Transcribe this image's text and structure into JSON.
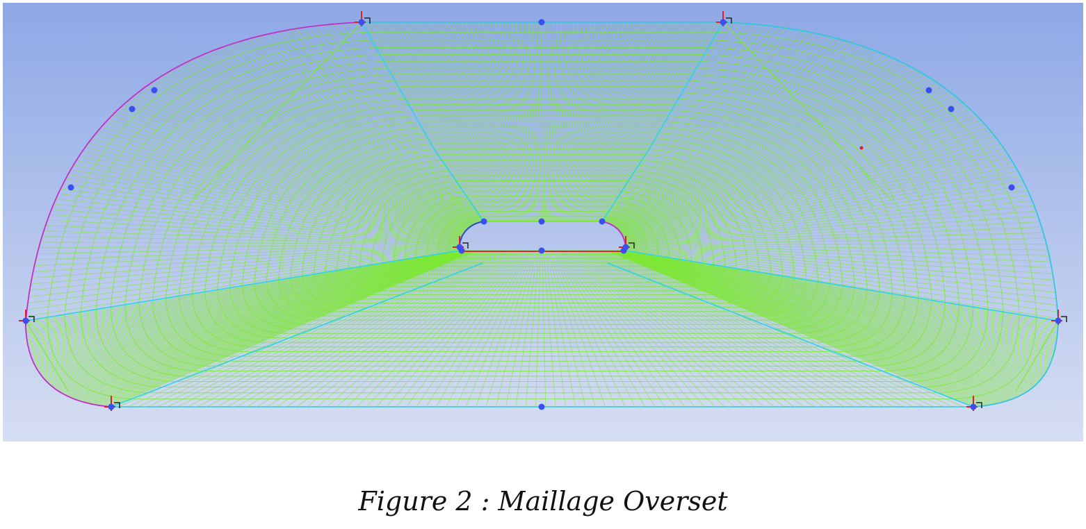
{
  "figure": {
    "caption": "Figure 2 : Maillage Overset"
  },
  "colors": {
    "background_top": "#8ea8e6",
    "background_bottom": "#d6def2",
    "mesh": "#7de832",
    "block_edge_cyan": "#2fd3e6",
    "curve_magenta": "#c12ec8",
    "curve_cyan": "#2fc7e0",
    "inner_bottom_edge": "#d22a2a",
    "vertex": "#3a4ff0",
    "marker_red": "#e02020"
  },
  "icons": {
    "vertex": "blue-vertex-dot",
    "corner_marker": "red-cross-marker"
  }
}
